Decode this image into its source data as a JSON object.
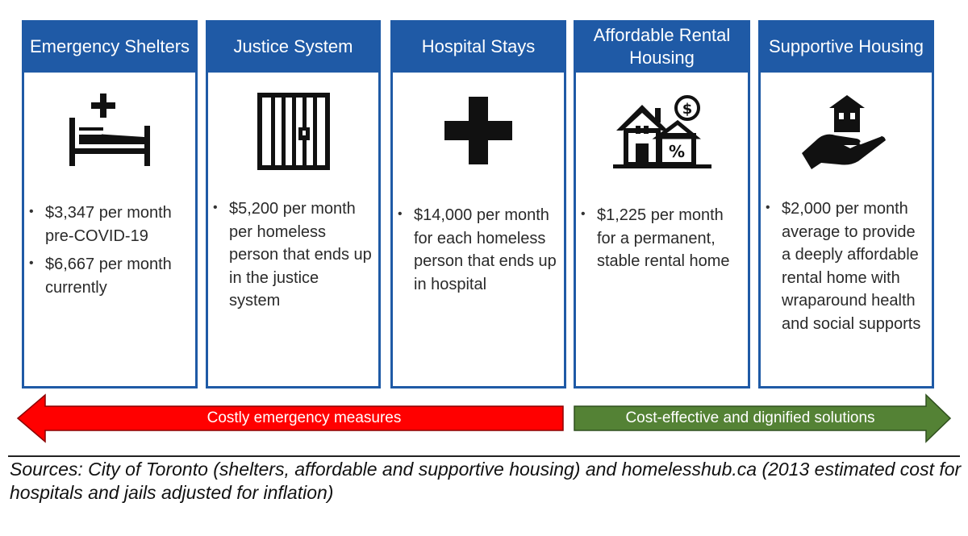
{
  "columns": [
    {
      "title": "Emergency Shelters",
      "icon": "hospital-bed-icon",
      "bullets": [
        "$3,347 per month pre-COVID-19",
        "$6,667 per month currently"
      ]
    },
    {
      "title": "Justice System",
      "icon": "jail-bars-icon",
      "bullets": [
        "$5,200 per month per homeless person that ends up in the justice system"
      ]
    },
    {
      "title": "Hospital Stays",
      "icon": "medical-cross-icon",
      "bullets": [
        "$14,000 per month for each homeless person that ends up in hospital"
      ]
    },
    {
      "title": "Affordable Rental Housing",
      "icon": "house-percent-icon",
      "bullets": [
        "$1,225 per month for a permanent, stable rental home"
      ]
    },
    {
      "title": "Supportive Housing",
      "icon": "hand-holding-house-icon",
      "bullets": [
        "$2,000 per month average to provide a deeply affordable rental home with wraparound health and social supports"
      ]
    }
  ],
  "arrows": {
    "left_label": "Costly emergency measures",
    "right_label": "Cost-effective and dignified solutions",
    "left_color": "#ff0000",
    "right_color": "#548235"
  },
  "header_color": "#1f5aa6",
  "sources": "Sources: City of Toronto (shelters, affordable and supportive housing) and homelesshub.ca (2013 estimated cost for hospitals and jails adjusted for inflation)"
}
